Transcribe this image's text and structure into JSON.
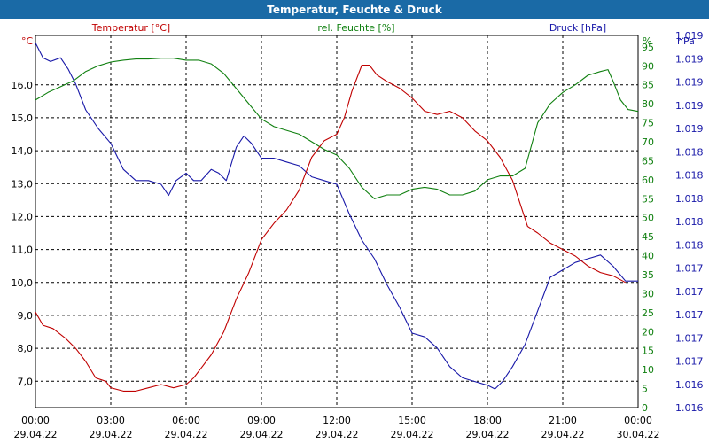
{
  "window": {
    "title": "Temperatur, Feuchte & Druck"
  },
  "colors": {
    "temperature": "#c00000",
    "humidity": "#108010",
    "pressure": "#1818a8",
    "grid": "#000000",
    "title_bg": "#1a6aa6"
  },
  "chart_data": {
    "type": "line",
    "title": "Temperatur, Feuchte & Druck",
    "x_ticks": [
      {
        "time": "00:00",
        "date": "29.04.22"
      },
      {
        "time": "03:00",
        "date": "29.04.22"
      },
      {
        "time": "06:00",
        "date": "29.04.22"
      },
      {
        "time": "09:00",
        "date": "29.04.22"
      },
      {
        "time": "12:00",
        "date": "29.04.22"
      },
      {
        "time": "15:00",
        "date": "29.04.22"
      },
      {
        "time": "18:00",
        "date": "29.04.22"
      },
      {
        "time": "21:00",
        "date": "29.04.22"
      },
      {
        "time": "00:00",
        "date": "30.04.22"
      }
    ],
    "x_range_hours": [
      0,
      24
    ],
    "temperature": {
      "label": "Temperatur [°C]",
      "unit": "°C",
      "ylim": [
        6.2,
        17.5
      ],
      "ticks": [
        "7,0",
        "8,0",
        "9,0",
        "10,0",
        "11,0",
        "12,0",
        "13,0",
        "14,0",
        "15,0",
        "16,0"
      ],
      "tick_values": [
        7,
        8,
        9,
        10,
        11,
        12,
        13,
        14,
        15,
        16
      ],
      "points": [
        [
          0,
          9.1
        ],
        [
          0.3,
          8.7
        ],
        [
          0.7,
          8.6
        ],
        [
          1.2,
          8.3
        ],
        [
          1.6,
          8.0
        ],
        [
          2.0,
          7.6
        ],
        [
          2.4,
          7.1
        ],
        [
          2.8,
          7.0
        ],
        [
          3.0,
          6.8
        ],
        [
          3.5,
          6.7
        ],
        [
          4.0,
          6.7
        ],
        [
          4.5,
          6.8
        ],
        [
          5.0,
          6.9
        ],
        [
          5.5,
          6.8
        ],
        [
          6.0,
          6.9
        ],
        [
          6.3,
          7.1
        ],
        [
          6.6,
          7.4
        ],
        [
          7.0,
          7.8
        ],
        [
          7.5,
          8.5
        ],
        [
          8.0,
          9.5
        ],
        [
          8.5,
          10.3
        ],
        [
          9.0,
          11.3
        ],
        [
          9.5,
          11.8
        ],
        [
          10.0,
          12.2
        ],
        [
          10.5,
          12.8
        ],
        [
          11.0,
          13.8
        ],
        [
          11.5,
          14.3
        ],
        [
          12.0,
          14.5
        ],
        [
          12.3,
          15.0
        ],
        [
          12.6,
          15.8
        ],
        [
          13.0,
          16.6
        ],
        [
          13.3,
          16.6
        ],
        [
          13.6,
          16.3
        ],
        [
          14.0,
          16.1
        ],
        [
          14.5,
          15.9
        ],
        [
          15.0,
          15.6
        ],
        [
          15.5,
          15.2
        ],
        [
          16.0,
          15.1
        ],
        [
          16.5,
          15.2
        ],
        [
          17.0,
          15.0
        ],
        [
          17.5,
          14.6
        ],
        [
          18.0,
          14.3
        ],
        [
          18.5,
          13.8
        ],
        [
          19.0,
          13.1
        ],
        [
          19.3,
          12.4
        ],
        [
          19.6,
          11.7
        ],
        [
          20.0,
          11.5
        ],
        [
          20.5,
          11.2
        ],
        [
          21.0,
          11.0
        ],
        [
          21.5,
          10.8
        ],
        [
          22.0,
          10.5
        ],
        [
          22.5,
          10.3
        ],
        [
          23.0,
          10.2
        ],
        [
          23.5,
          10.0
        ]
      ]
    },
    "humidity": {
      "label": "rel. Feuchte [%]",
      "unit": "%",
      "ylim": [
        0,
        98
      ],
      "ticks": [
        "0",
        "5",
        "10",
        "15",
        "20",
        "25",
        "30",
        "35",
        "40",
        "45",
        "50",
        "55",
        "60",
        "65",
        "70",
        "75",
        "80",
        "85",
        "90",
        "95"
      ],
      "tick_values": [
        0,
        5,
        10,
        15,
        20,
        25,
        30,
        35,
        40,
        45,
        50,
        55,
        60,
        65,
        70,
        75,
        80,
        85,
        90,
        95
      ],
      "points": [
        [
          0,
          81
        ],
        [
          0.5,
          83
        ],
        [
          1.0,
          84.5
        ],
        [
          1.5,
          86
        ],
        [
          2.0,
          88.5
        ],
        [
          2.5,
          90
        ],
        [
          3.0,
          91
        ],
        [
          3.5,
          91.5
        ],
        [
          4.0,
          91.8
        ],
        [
          4.5,
          91.8
        ],
        [
          5.0,
          92
        ],
        [
          5.5,
          92
        ],
        [
          6.0,
          91.5
        ],
        [
          6.5,
          91.5
        ],
        [
          7.0,
          90.5
        ],
        [
          7.5,
          88
        ],
        [
          8.0,
          84
        ],
        [
          8.5,
          80
        ],
        [
          9.0,
          76
        ],
        [
          9.5,
          74
        ],
        [
          10.0,
          73
        ],
        [
          10.5,
          72
        ],
        [
          11.0,
          70
        ],
        [
          11.5,
          68
        ],
        [
          12.0,
          66.5
        ],
        [
          12.5,
          63
        ],
        [
          13.0,
          58
        ],
        [
          13.5,
          55
        ],
        [
          14.0,
          56
        ],
        [
          14.5,
          56
        ],
        [
          15.0,
          57.5
        ],
        [
          15.5,
          58
        ],
        [
          16.0,
          57.5
        ],
        [
          16.5,
          56
        ],
        [
          17.0,
          56
        ],
        [
          17.5,
          57
        ],
        [
          18.0,
          60
        ],
        [
          18.5,
          61
        ],
        [
          19.0,
          61
        ],
        [
          19.5,
          63
        ],
        [
          20.0,
          75
        ],
        [
          20.5,
          80
        ],
        [
          21.0,
          83
        ],
        [
          21.5,
          85
        ],
        [
          22.0,
          87.5
        ],
        [
          22.5,
          88.5
        ],
        [
          22.8,
          89
        ],
        [
          23.0,
          86
        ],
        [
          23.3,
          81
        ],
        [
          23.6,
          78.5
        ],
        [
          24.0,
          78
        ]
      ]
    },
    "pressure": {
      "label": "Druck [hPa]",
      "unit": "hPa",
      "ylim": [
        0,
        100
      ],
      "ticks": [
        "1.016",
        "1.016",
        "1.017",
        "1.017",
        "1.017",
        "1.017",
        "1.017",
        "1.018",
        "1.018",
        "1.018",
        "1.018",
        "1.018",
        "1.019",
        "1.019",
        "1.019",
        "1.019",
        "1.019"
      ],
      "tick_values": [
        0,
        6.25,
        12.5,
        18.75,
        25,
        31.25,
        37.5,
        43.75,
        50,
        56.25,
        62.5,
        68.75,
        75,
        81.25,
        87.5,
        93.75,
        100
      ],
      "points": [
        [
          0,
          98
        ],
        [
          0.3,
          94
        ],
        [
          0.6,
          93
        ],
        [
          1.0,
          94
        ],
        [
          1.3,
          91
        ],
        [
          1.6,
          87
        ],
        [
          2.0,
          80
        ],
        [
          2.5,
          75
        ],
        [
          3.0,
          71
        ],
        [
          3.5,
          64
        ],
        [
          4.0,
          61
        ],
        [
          4.5,
          61
        ],
        [
          5.0,
          60
        ],
        [
          5.3,
          57
        ],
        [
          5.6,
          61
        ],
        [
          6.0,
          63
        ],
        [
          6.3,
          61
        ],
        [
          6.6,
          61
        ],
        [
          7.0,
          64
        ],
        [
          7.3,
          63
        ],
        [
          7.6,
          61
        ],
        [
          8.0,
          70
        ],
        [
          8.3,
          73
        ],
        [
          8.6,
          71
        ],
        [
          9.0,
          67
        ],
        [
          9.5,
          67
        ],
        [
          10.0,
          66
        ],
        [
          10.5,
          65
        ],
        [
          11.0,
          62
        ],
        [
          11.5,
          61
        ],
        [
          12.0,
          60
        ],
        [
          12.5,
          52
        ],
        [
          13.0,
          45
        ],
        [
          13.5,
          40
        ],
        [
          14.0,
          33
        ],
        [
          14.5,
          27
        ],
        [
          15.0,
          20
        ],
        [
          15.5,
          19
        ],
        [
          16.0,
          16
        ],
        [
          16.5,
          11
        ],
        [
          17.0,
          8
        ],
        [
          17.5,
          7
        ],
        [
          18.0,
          6
        ],
        [
          18.3,
          5
        ],
        [
          18.6,
          7
        ],
        [
          19.0,
          11
        ],
        [
          19.5,
          17
        ],
        [
          20.0,
          26
        ],
        [
          20.5,
          35
        ],
        [
          21.0,
          37
        ],
        [
          21.5,
          39
        ],
        [
          22.0,
          40
        ],
        [
          22.5,
          41
        ],
        [
          23.0,
          38
        ],
        [
          23.5,
          34
        ],
        [
          24.0,
          34
        ]
      ]
    }
  }
}
